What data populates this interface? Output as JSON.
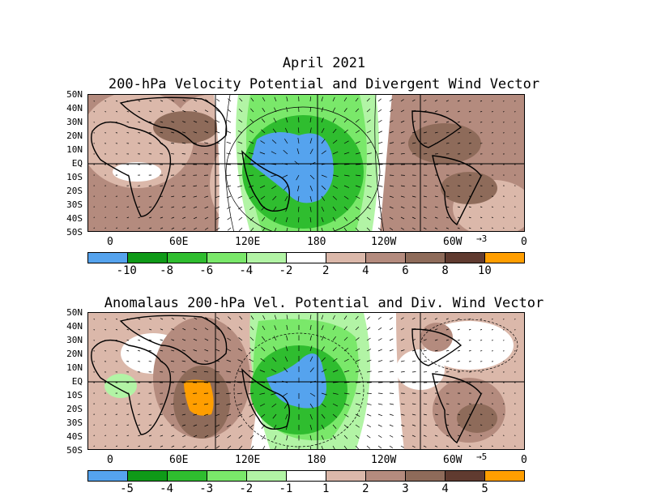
{
  "header": {
    "month": "April 2021"
  },
  "panels": [
    {
      "title": "200-hPa Velocity Potential and Divergent Wind Vector",
      "lat_labels": [
        "50N",
        "40N",
        "30N",
        "20N",
        "10N",
        "EQ",
        "10S",
        "20S",
        "30S",
        "40S",
        "50S"
      ],
      "lon_labels": [
        "0",
        "60E",
        "120E",
        "180",
        "120W",
        "60W",
        "0"
      ],
      "vector_ref": "3",
      "colorbar": {
        "colors": [
          "#55a3ee",
          "#0f9a18",
          "#2fbd2f",
          "#7ae86a",
          "#b2f4a5",
          "#ffffff",
          "#dbb8aa",
          "#b48b7e",
          "#8e6b5a",
          "#603b30",
          "#ff9e00"
        ],
        "labels": [
          "-10",
          "-8",
          "-6",
          "-4",
          "-2",
          "2",
          "4",
          "6",
          "8",
          "10"
        ]
      }
    },
    {
      "title": "Anomalaus 200-hPa Vel. Potential and Div. Wind Vector",
      "lat_labels": [
        "50N",
        "40N",
        "30N",
        "20N",
        "10N",
        "EQ",
        "10S",
        "20S",
        "30S",
        "40S",
        "50S"
      ],
      "lon_labels": [
        "0",
        "60E",
        "120E",
        "180",
        "120W",
        "60W",
        "0"
      ],
      "vector_ref": "5",
      "colorbar": {
        "colors": [
          "#55a3ee",
          "#0f9a18",
          "#2fbd2f",
          "#7ae86a",
          "#b2f4a5",
          "#ffffff",
          "#dbb8aa",
          "#b48b7e",
          "#8e6b5a",
          "#603b30",
          "#ff9e00"
        ],
        "labels": [
          "-5",
          "-4",
          "-3",
          "-2",
          "-1",
          "1",
          "2",
          "3",
          "4",
          "5"
        ]
      }
    }
  ]
}
